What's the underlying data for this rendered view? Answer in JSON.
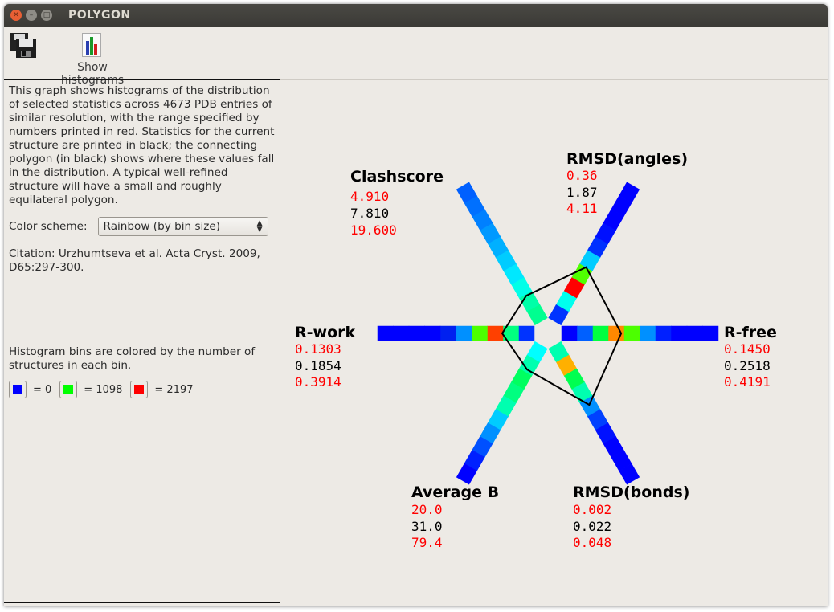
{
  "window": {
    "title": "POLYGON"
  },
  "toolbar": {
    "save_icon": "save-floppy-icon",
    "histogram_icon": "bar-chart-icon",
    "show_histograms_label": "Show histograms"
  },
  "left_panel": {
    "description": "This graph shows histograms of the distribution of selected statistics across 4673 PDB entries of similar resolution, with the range specified by numbers printed in red. Statistics for the current structure are printed in black; the connecting polygon (in black) shows where these values fall in the distribution. A typical well-refined structure will have a small and roughly equilateral polygon.",
    "color_scheme_label": "Color scheme:",
    "color_scheme_value": "Rainbow (by bin size)",
    "citation": "Citation: Urzhumtseva et al. Acta Cryst. 2009, D65:297-300.",
    "legend_text": "Histogram bins are colored by the number of structures in each bin.",
    "legend": [
      {
        "color": "#0000ff",
        "label": "= 0"
      },
      {
        "color": "#00ff00",
        "label": "= 1098"
      },
      {
        "color": "#ff0000",
        "label": "= 2197"
      }
    ]
  },
  "polygon": {
    "axes": [
      {
        "name": "Clashscore",
        "direction": "upper-left",
        "min": "4.910",
        "value": "7.810",
        "max": "19.600",
        "polygon_position": 0.19,
        "bins": [
          "#00ff90",
          "#00ffa8",
          "#00ffe8",
          "#00e8ff",
          "#00ccff",
          "#00b0ff",
          "#0099ff",
          "#0080ff",
          "#0070ff",
          "#0060ff"
        ]
      },
      {
        "name": "RMSD(angles)",
        "direction": "upper-right",
        "min": "0.36",
        "value": "1.87",
        "max": "4.11",
        "polygon_position": 0.4,
        "bins": [
          "#0033ff",
          "#00ffee",
          "#ff0000",
          "#50ff00",
          "#00ccff",
          "#0030ff",
          "#0010ff",
          "#0000ff",
          "#0000ff",
          "#0000ff"
        ]
      },
      {
        "name": "R-free",
        "direction": "right",
        "min": "0.1450",
        "value": "0.2518",
        "max": "0.4191",
        "polygon_position": 0.38,
        "bins": [
          "#0000ff",
          "#0060ff",
          "#00ff40",
          "#ff8800",
          "#4cff00",
          "#0090ff",
          "#0020ff",
          "#0000ff",
          "#0000ff",
          "#0000ff"
        ]
      },
      {
        "name": "RMSD(bonds)",
        "direction": "lower-right",
        "min": "0.002",
        "value": "0.022",
        "max": "0.048",
        "polygon_position": 0.44,
        "bins": [
          "#00ffb0",
          "#ffb000",
          "#00ff50",
          "#00ffb0",
          "#0090ff",
          "#0040ff",
          "#0010ff",
          "#0000ff",
          "#0000ff",
          "#0000ff"
        ]
      },
      {
        "name": "Average B",
        "direction": "lower-left",
        "min": "20.0",
        "value": "31.0",
        "max": "79.4",
        "polygon_position": 0.18,
        "bins": [
          "#00ffff",
          "#00ffb0",
          "#00ff60",
          "#00ff80",
          "#00ffb0",
          "#00ccff",
          "#0090ff",
          "#0050ff",
          "#0020ff",
          "#0000ff"
        ]
      },
      {
        "name": "R-work",
        "direction": "left",
        "min": "0.1303",
        "value": "0.1854",
        "max": "0.3914",
        "polygon_position": 0.205,
        "bins": [
          "#0033ff",
          "#00ff80",
          "#ff4000",
          "#4cff00",
          "#0090ff",
          "#0020f0",
          "#0000ff",
          "#0000ff",
          "#0000ff",
          "#0000ff"
        ]
      }
    ]
  }
}
